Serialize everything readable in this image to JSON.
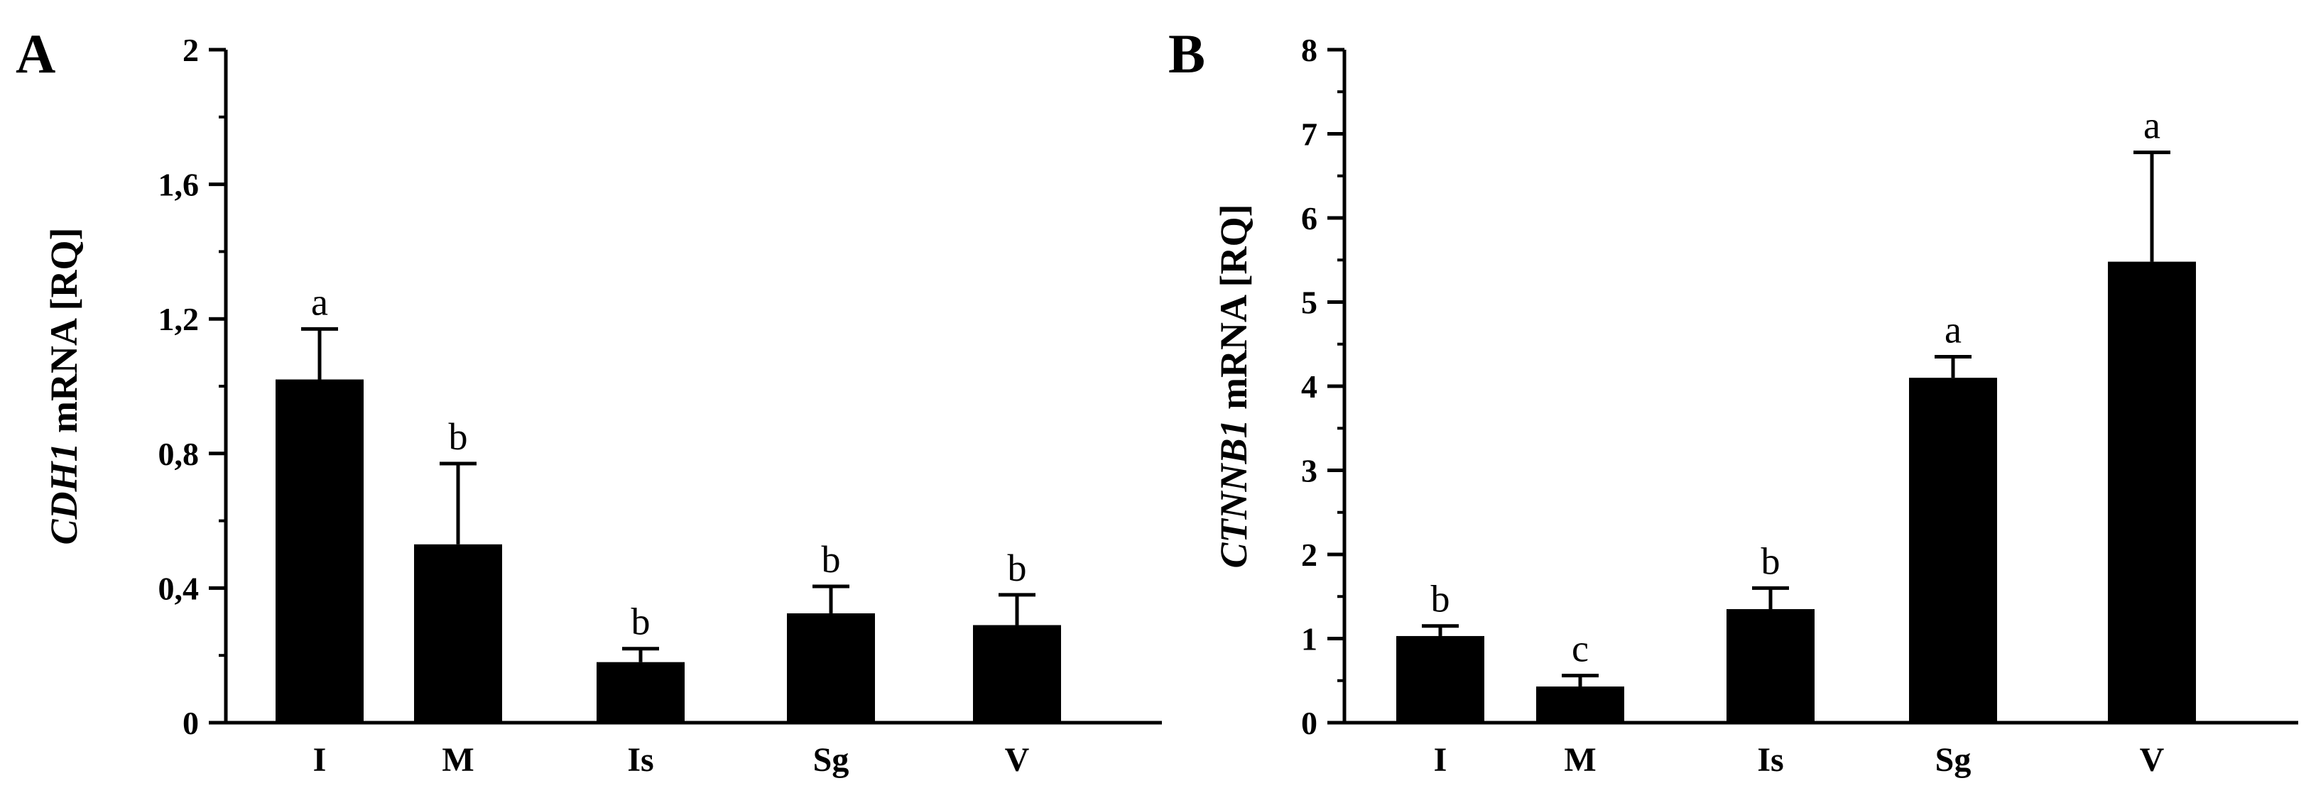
{
  "chart_data": [
    {
      "panel_label": "A",
      "type": "bar",
      "ylabel_italic": "CDH1",
      "ylabel_rest": " mRNA [RQ]",
      "categories": [
        "I",
        "M",
        "Is",
        "Sg",
        "V"
      ],
      "values": [
        1.02,
        0.53,
        0.18,
        0.325,
        0.29
      ],
      "errors": [
        0.15,
        0.24,
        0.04,
        0.08,
        0.09
      ],
      "letters": [
        "a",
        "b",
        "b",
        "b",
        "b"
      ],
      "ylim": [
        0,
        2
      ],
      "yticks": [
        0,
        0.4,
        0.8,
        1.2,
        1.6,
        2
      ],
      "ytick_labels": [
        "0",
        "0,4",
        "0,8",
        "1,2",
        "1,6",
        "2"
      ],
      "minor_step": 0.2,
      "bar_color": "#000000"
    },
    {
      "panel_label": "B",
      "type": "bar",
      "ylabel_italic": "CTNNB1",
      "ylabel_rest": " mRNA [RQ]",
      "categories": [
        "I",
        "M",
        "Is",
        "Sg",
        "V"
      ],
      "values": [
        1.03,
        0.43,
        1.35,
        4.1,
        5.48
      ],
      "errors": [
        0.12,
        0.13,
        0.25,
        0.25,
        1.3
      ],
      "letters": [
        "b",
        "c",
        "b",
        "a",
        "a"
      ],
      "ylim": [
        0,
        8
      ],
      "yticks": [
        0,
        1,
        2,
        3,
        4,
        5,
        6,
        7,
        8
      ],
      "ytick_labels": [
        "0",
        "1",
        "2",
        "3",
        "4",
        "5",
        "6",
        "7",
        "8"
      ],
      "minor_step": 0.5,
      "bar_color": "#000000"
    }
  ]
}
